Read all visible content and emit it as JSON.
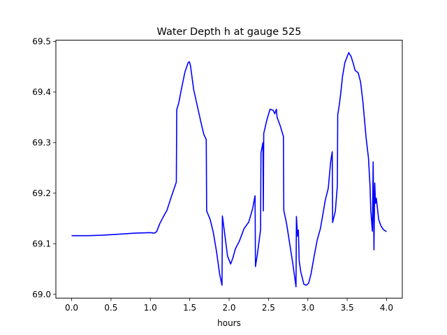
{
  "chart_data": {
    "type": "line",
    "title": "Water Depth h at gauge 525",
    "xlabel": "hours",
    "ylabel": "",
    "xlim": [
      -0.2,
      4.2
    ],
    "ylim": [
      68.9925,
      69.5025
    ],
    "grid": false,
    "legend": "none",
    "x_ticks": [
      0.0,
      0.5,
      1.0,
      1.5,
      2.0,
      2.5,
      3.0,
      3.5,
      4.0
    ],
    "x_tick_labels": [
      "0.0",
      "0.5",
      "1.0",
      "1.5",
      "2.0",
      "2.5",
      "3.0",
      "3.5",
      "4.0"
    ],
    "y_ticks": [
      69.0,
      69.1,
      69.2,
      69.3,
      69.4,
      69.5
    ],
    "y_tick_labels": [
      "69.0",
      "69.1",
      "69.2",
      "69.3",
      "69.4",
      "69.5"
    ],
    "series": [
      {
        "name": "",
        "color": "#0000ff",
        "points": [
          [
            0.0,
            69.116
          ],
          [
            0.2,
            69.116
          ],
          [
            0.4,
            69.117
          ],
          [
            0.6,
            69.119
          ],
          [
            0.8,
            69.121
          ],
          [
            1.0,
            69.122
          ],
          [
            1.05,
            69.121
          ],
          [
            1.08,
            69.124
          ],
          [
            1.12,
            69.14
          ],
          [
            1.17,
            69.155
          ],
          [
            1.21,
            69.166
          ],
          [
            1.26,
            69.19
          ],
          [
            1.33,
            69.222
          ],
          [
            1.335,
            69.365
          ],
          [
            1.36,
            69.378
          ],
          [
            1.4,
            69.41
          ],
          [
            1.44,
            69.44
          ],
          [
            1.48,
            69.458
          ],
          [
            1.495,
            69.46
          ],
          [
            1.51,
            69.452
          ],
          [
            1.55,
            69.405
          ],
          [
            1.6,
            69.37
          ],
          [
            1.65,
            69.335
          ],
          [
            1.68,
            69.316
          ],
          [
            1.71,
            69.306
          ],
          [
            1.715,
            69.165
          ],
          [
            1.76,
            69.148
          ],
          [
            1.8,
            69.122
          ],
          [
            1.84,
            69.085
          ],
          [
            1.88,
            69.04
          ],
          [
            1.91,
            69.018
          ],
          [
            1.915,
            69.155
          ],
          [
            1.94,
            69.125
          ],
          [
            1.98,
            69.076
          ],
          [
            2.02,
            69.06
          ],
          [
            2.05,
            69.073
          ],
          [
            2.08,
            69.09
          ],
          [
            2.13,
            69.105
          ],
          [
            2.19,
            69.13
          ],
          [
            2.25,
            69.143
          ],
          [
            2.3,
            69.17
          ],
          [
            2.33,
            69.195
          ],
          [
            2.335,
            69.055
          ],
          [
            2.36,
            69.08
          ],
          [
            2.4,
            69.128
          ],
          [
            2.405,
            69.28
          ],
          [
            2.43,
            69.3
          ],
          [
            2.435,
            69.165
          ],
          [
            2.44,
            69.318
          ],
          [
            2.48,
            69.345
          ],
          [
            2.52,
            69.366
          ],
          [
            2.56,
            69.364
          ],
          [
            2.58,
            69.357
          ],
          [
            2.6,
            69.366
          ],
          [
            2.61,
            69.35
          ],
          [
            2.65,
            69.333
          ],
          [
            2.69,
            69.312
          ],
          [
            2.695,
            69.166
          ],
          [
            2.73,
            69.14
          ],
          [
            2.77,
            69.1
          ],
          [
            2.81,
            69.06
          ],
          [
            2.85,
            69.015
          ],
          [
            2.855,
            69.154
          ],
          [
            2.87,
            69.115
          ],
          [
            2.88,
            69.127
          ],
          [
            2.89,
            69.067
          ],
          [
            2.91,
            69.045
          ],
          [
            2.95,
            69.02
          ],
          [
            2.98,
            69.018
          ],
          [
            3.01,
            69.022
          ],
          [
            3.04,
            69.04
          ],
          [
            3.08,
            69.075
          ],
          [
            3.12,
            69.108
          ],
          [
            3.16,
            69.13
          ],
          [
            3.2,
            69.166
          ],
          [
            3.22,
            69.185
          ],
          [
            3.26,
            69.21
          ],
          [
            3.29,
            69.262
          ],
          [
            3.31,
            69.282
          ],
          [
            3.315,
            69.142
          ],
          [
            3.35,
            69.165
          ],
          [
            3.375,
            69.215
          ],
          [
            3.38,
            69.355
          ],
          [
            3.4,
            69.375
          ],
          [
            3.42,
            69.4
          ],
          [
            3.44,
            69.43
          ],
          [
            3.47,
            69.458
          ],
          [
            3.5,
            69.47
          ],
          [
            3.52,
            69.478
          ],
          [
            3.55,
            69.47
          ],
          [
            3.58,
            69.455
          ],
          [
            3.6,
            69.443
          ],
          [
            3.64,
            69.438
          ],
          [
            3.67,
            69.42
          ],
          [
            3.7,
            69.38
          ],
          [
            3.74,
            69.31
          ],
          [
            3.77,
            69.27
          ],
          [
            3.79,
            69.215
          ],
          [
            3.8,
            69.165
          ],
          [
            3.82,
            69.125
          ],
          [
            3.83,
            69.262
          ],
          [
            3.835,
            69.18
          ],
          [
            3.84,
            69.088
          ],
          [
            3.85,
            69.22
          ],
          [
            3.86,
            69.18
          ],
          [
            3.87,
            69.19
          ],
          [
            3.9,
            69.148
          ],
          [
            3.93,
            69.135
          ],
          [
            3.96,
            69.128
          ],
          [
            4.0,
            69.124
          ]
        ]
      }
    ]
  }
}
